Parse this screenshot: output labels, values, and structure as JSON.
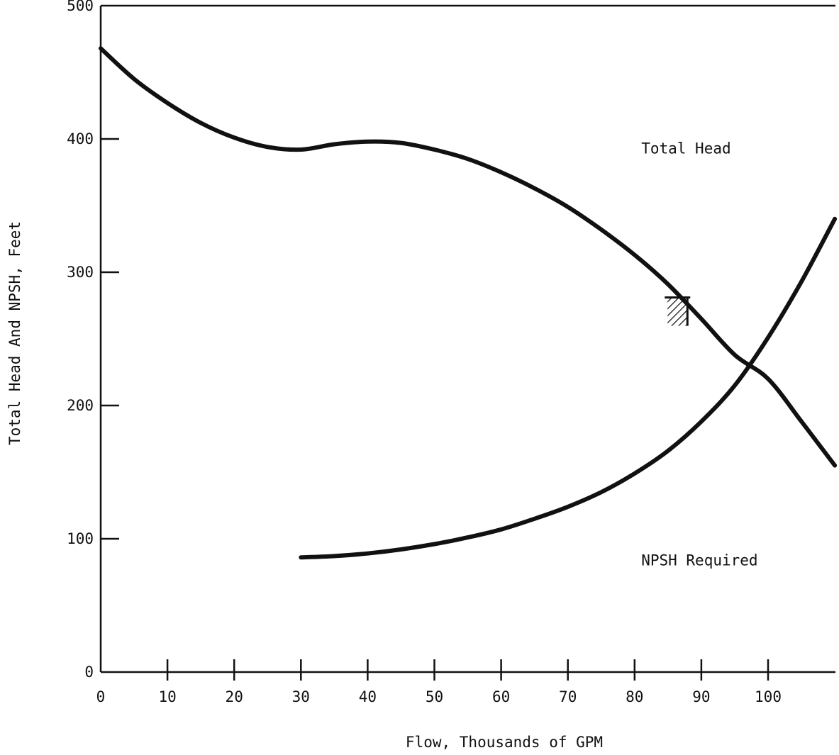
{
  "chart_data": {
    "type": "line",
    "title": "",
    "xlabel": "Flow, Thousands of GPM",
    "ylabel": "Total Head And NPSH, Feet",
    "xlim": [
      0,
      110
    ],
    "ylim": [
      0,
      500
    ],
    "x_ticks": [
      "0",
      "10",
      "20",
      "30",
      "40",
      "50",
      "60",
      "70",
      "80",
      "90",
      "100"
    ],
    "y_ticks": [
      "0",
      "100",
      "200",
      "300",
      "400",
      "500"
    ],
    "grid": false,
    "series": [
      {
        "name": "Total Head",
        "x": [
          0,
          5,
          10,
          15,
          20,
          25,
          30,
          35,
          40,
          45,
          50,
          55,
          60,
          65,
          70,
          75,
          80,
          85,
          90,
          95,
          100,
          105,
          110
        ],
        "y": [
          468,
          445,
          427,
          412,
          401,
          394,
          392,
          396,
          398,
          397,
          392,
          385,
          375,
          363,
          349,
          332,
          313,
          291,
          265,
          238,
          220,
          188,
          155
        ]
      },
      {
        "name": "NPSH Required",
        "x": [
          30,
          35,
          40,
          45,
          50,
          55,
          60,
          65,
          70,
          75,
          80,
          85,
          90,
          95,
          100,
          105,
          110
        ],
        "y": [
          86,
          87,
          89,
          92,
          96,
          101,
          107,
          115,
          124,
          135,
          149,
          166,
          188,
          215,
          251,
          293,
          340
        ]
      }
    ],
    "annotations": [
      {
        "text": "Total Head",
        "x": 81,
        "y": 389
      },
      {
        "text": "NPSH Required",
        "x": 81,
        "y": 80
      }
    ],
    "marker": {
      "type": "hatched-limit",
      "x": 86,
      "y": 280
    }
  }
}
